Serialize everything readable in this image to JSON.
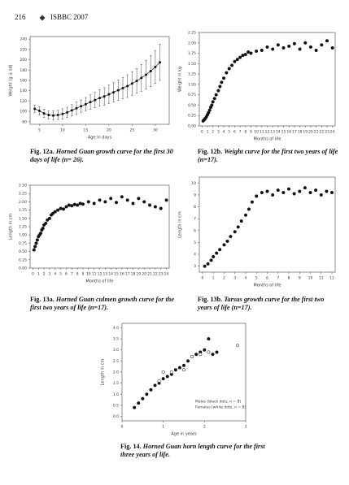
{
  "header": {
    "page": "216",
    "journal": "ISBBC 2007"
  },
  "chart_data": [
    {
      "type": "line",
      "xlabel": "Age in days",
      "ylabel": "Weight (g ± sd)",
      "caption_label": "Fig. 12a.",
      "caption": "Horned Guan growth curve for the first 30 days of life (n= 26).",
      "xlim": [
        3,
        33
      ],
      "xticks": [
        5,
        10,
        15,
        20,
        25,
        30
      ],
      "ylim": [
        75,
        245
      ],
      "yticks": [
        80,
        100,
        120,
        140,
        160,
        180,
        200,
        220,
        240
      ],
      "series": [
        {
          "color": "#111111",
          "x": [
            4,
            5,
            6,
            7,
            8,
            9,
            10,
            11,
            12,
            13,
            14,
            15,
            16,
            17,
            18,
            19,
            20,
            21,
            22,
            23,
            24,
            25,
            26,
            27,
            28,
            29,
            30,
            31
          ],
          "values": [
            105,
            101,
            96,
            93,
            92,
            93,
            95,
            98,
            102,
            106,
            110,
            114,
            118,
            122,
            126,
            129,
            133,
            137,
            141,
            145,
            149,
            154,
            159,
            165,
            171,
            178,
            186,
            195
          ],
          "errors": [
            7,
            8,
            8,
            8,
            9,
            9,
            10,
            10,
            11,
            12,
            12,
            13,
            14,
            15,
            16,
            17,
            18,
            19,
            20,
            21,
            22,
            23,
            24,
            26,
            28,
            30,
            32,
            35
          ]
        }
      ]
    },
    {
      "type": "scatter",
      "xlabel": "Months of life",
      "ylabel": "Weight in kg",
      "caption_label": "Fig. 12b.",
      "caption": "Weight curve for the first two years of life (n=17).",
      "xlim": [
        -0.5,
        24.5
      ],
      "xticks": [
        0,
        1,
        2,
        3,
        4,
        5,
        6,
        7,
        8,
        9,
        10,
        11,
        12,
        13,
        14,
        15,
        16,
        17,
        18,
        19,
        20,
        21,
        22,
        23,
        24
      ],
      "ylim": [
        0,
        2.25
      ],
      "yticks": [
        {
          "value": 0,
          "label": "0.00"
        },
        {
          "value": 0.25,
          "label": "0.25"
        },
        {
          "value": 0.5,
          "label": "0.50"
        },
        {
          "value": 0.75,
          "label": "0.75"
        },
        {
          "value": 1,
          "label": "1.00"
        },
        {
          "value": 1.25,
          "label": "1.25"
        },
        {
          "value": 1.5,
          "label": "1.50"
        },
        {
          "value": 1.75,
          "label": "1.75"
        },
        {
          "value": 2,
          "label": "2.00"
        },
        {
          "value": 2.25,
          "label": "2.25"
        }
      ],
      "series": [
        {
          "color": "#111111",
          "x": [
            0.2,
            0.4,
            0.6,
            0.8,
            1,
            1.2,
            1.4,
            1.6,
            1.8,
            2,
            2.3,
            2.6,
            3,
            3.3,
            3.6,
            4,
            4.5,
            5,
            5.5,
            6,
            6.5,
            7,
            7.5,
            8,
            8.5,
            9,
            10,
            11,
            12,
            13,
            14,
            15,
            16,
            17,
            18,
            19,
            20,
            21,
            22,
            23,
            24
          ],
          "values": [
            0.12,
            0.15,
            0.18,
            0.22,
            0.27,
            0.32,
            0.38,
            0.45,
            0.5,
            0.58,
            0.66,
            0.75,
            0.85,
            0.95,
            1.05,
            1.15,
            1.28,
            1.38,
            1.46,
            1.55,
            1.6,
            1.65,
            1.7,
            1.72,
            1.78,
            1.75,
            1.8,
            1.82,
            1.9,
            1.85,
            1.95,
            1.88,
            1.92,
            1.98,
            1.85,
            2.0,
            1.9,
            1.82,
            1.95,
            2.05,
            1.88
          ]
        }
      ]
    },
    {
      "type": "scatter",
      "xlabel": "Months of life",
      "ylabel": "Length in cm",
      "caption_label": "Fig. 13a.",
      "caption": "Horned Guan culmen growth curve for the first two years of life (n=17).",
      "xlim": [
        -0.5,
        24.5
      ],
      "xticks": [
        0,
        1,
        2,
        3,
        4,
        5,
        6,
        7,
        8,
        9,
        10,
        11,
        12,
        13,
        14,
        15,
        16,
        17,
        18,
        19,
        20,
        21,
        22,
        23,
        24
      ],
      "ylim": [
        0,
        2.5
      ],
      "yticks": [
        {
          "value": 0,
          "label": "0.00"
        },
        {
          "value": 0.25,
          "label": "0.25"
        },
        {
          "value": 0.5,
          "label": "0.50"
        },
        {
          "value": 0.75,
          "label": "0.75"
        },
        {
          "value": 1,
          "label": "1.00"
        },
        {
          "value": 1.25,
          "label": "1.25"
        },
        {
          "value": 1.5,
          "label": "1.50"
        },
        {
          "value": 1.75,
          "label": "1.75"
        },
        {
          "value": 2,
          "label": "2.00"
        },
        {
          "value": 2.25,
          "label": "2.25"
        },
        {
          "value": 2.5,
          "label": "2.50"
        }
      ],
      "series": [
        {
          "color": "#111111",
          "x": [
            0.2,
            0.4,
            0.6,
            0.8,
            1,
            1.2,
            1.4,
            1.6,
            1.8,
            2,
            2.3,
            2.6,
            3,
            3.3,
            3.6,
            4,
            4.5,
            5,
            5.5,
            6,
            6.5,
            7,
            7.5,
            8,
            8.5,
            9,
            10,
            11,
            12,
            13,
            14,
            15,
            16,
            17,
            18,
            19,
            20,
            21,
            22,
            23,
            24
          ],
          "values": [
            0.55,
            0.65,
            0.75,
            0.85,
            0.95,
            1.0,
            1.05,
            1.15,
            1.2,
            1.3,
            1.35,
            1.45,
            1.5,
            1.6,
            1.65,
            1.7,
            1.75,
            1.8,
            1.78,
            1.85,
            1.9,
            1.88,
            1.92,
            1.9,
            1.95,
            1.93,
            2.0,
            1.95,
            2.05,
            2.0,
            2.1,
            1.98,
            2.15,
            2.05,
            1.95,
            2.1,
            2.0,
            1.9,
            1.85,
            1.8,
            2.05
          ]
        }
      ]
    },
    {
      "type": "scatter",
      "xlabel": "Months of life",
      "ylabel": "Length in cm",
      "caption_label": "Fig. 13b.",
      "caption": "Tarsus growth curve for the first two years of life (n=17).",
      "xlim": [
        -0.3,
        12.3
      ],
      "xticks": [
        0,
        1,
        2,
        3,
        4,
        5,
        6,
        7,
        8,
        9,
        10,
        11,
        12
      ],
      "ylim": [
        2.5,
        10.5
      ],
      "yticks": [
        3,
        4,
        5,
        6,
        7,
        8,
        9,
        10
      ],
      "series": [
        {
          "color": "#111111",
          "x": [
            0.2,
            0.5,
            0.8,
            1,
            1.3,
            1.6,
            2,
            2.3,
            2.6,
            3,
            3.3,
            3.6,
            4,
            4.3,
            4.6,
            5,
            5.5,
            6,
            6.5,
            7,
            7.5,
            8,
            8.5,
            9,
            9.5,
            10,
            10.5,
            11,
            11.5,
            12
          ],
          "values": [
            3.0,
            3.2,
            3.5,
            3.8,
            4.1,
            4.4,
            4.8,
            5.1,
            5.5,
            5.9,
            6.3,
            6.8,
            7.3,
            7.8,
            8.4,
            8.9,
            9.2,
            9.3,
            9.0,
            9.4,
            9.2,
            9.5,
            9.1,
            9.3,
            9.6,
            9.2,
            9.4,
            9.0,
            9.3,
            9.2
          ]
        }
      ]
    },
    {
      "type": "scatter",
      "xlabel": "Age in years",
      "ylabel": "Length in cm",
      "caption_label": "Fig. 14.",
      "caption": "Horned Guan horn length curve for the first three years of life.",
      "xlim": [
        0,
        3
      ],
      "xticks": [
        0,
        1,
        2,
        3
      ],
      "ylim": [
        -0.2,
        4.2
      ],
      "yticks": [
        {
          "value": 0,
          "label": "0.0"
        },
        {
          "value": 0.5,
          "label": "0.5"
        },
        {
          "value": 1,
          "label": "1.0"
        },
        {
          "value": 1.5,
          "label": "1.5"
        },
        {
          "value": 2,
          "label": "2.0"
        },
        {
          "value": 2.5,
          "label": "2.5"
        },
        {
          "value": 3,
          "label": "3.0"
        },
        {
          "value": 3.5,
          "label": "3.5"
        },
        {
          "value": 4,
          "label": "4.0"
        }
      ],
      "legend": "lower right",
      "series": [
        {
          "name": "Males (black dots, n = 8)",
          "color": "#111111",
          "x": [
            0.3,
            0.4,
            0.5,
            0.6,
            0.7,
            0.8,
            0.9,
            1.0,
            1.1,
            1.2,
            1.3,
            1.4,
            1.5,
            1.6,
            1.7,
            1.8,
            1.9,
            2.0,
            2.1,
            2.2,
            2.3
          ],
          "values": [
            0.4,
            0.6,
            0.8,
            1.0,
            1.2,
            1.4,
            1.5,
            1.7,
            1.8,
            1.9,
            2.1,
            2.2,
            2.3,
            2.5,
            2.7,
            2.8,
            2.9,
            3.0,
            3.5,
            2.8,
            2.9
          ]
        },
        {
          "name": "Females (white dots, n = 8)",
          "color": "#ffffff",
          "x": [
            0.9,
            1.0,
            1.2,
            1.5,
            1.7,
            1.9,
            2.1,
            2.8
          ],
          "values": [
            1.6,
            2.0,
            2.0,
            2.1,
            2.7,
            2.8,
            2.9,
            3.2
          ]
        }
      ]
    }
  ]
}
